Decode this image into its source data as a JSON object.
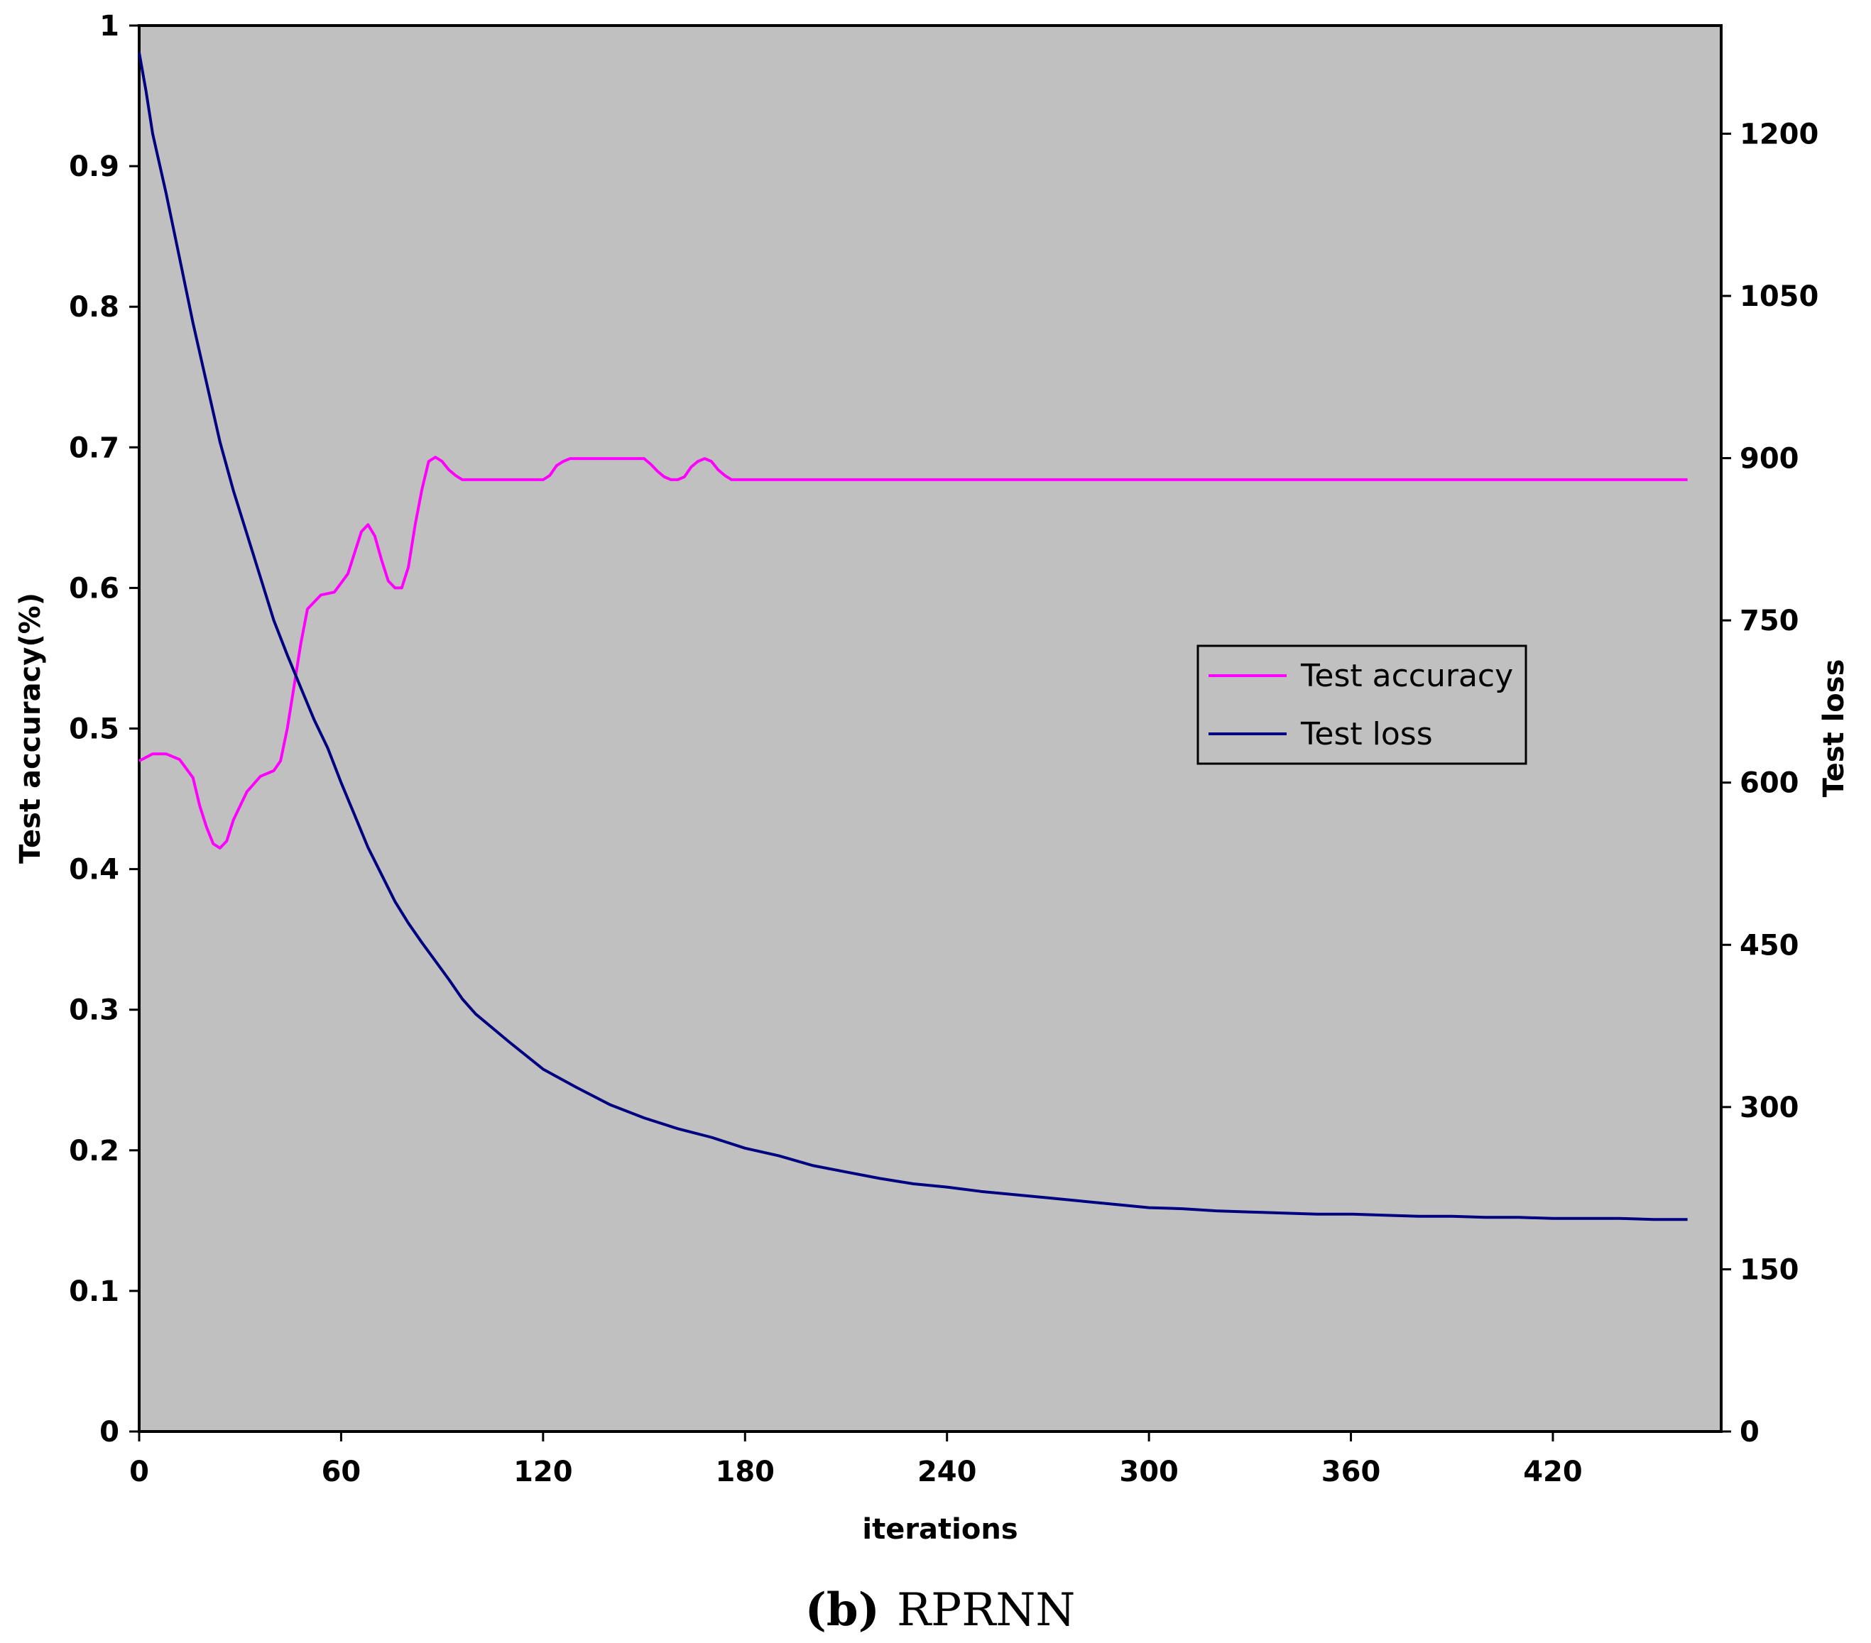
{
  "caption": {
    "letter": "(b)",
    "text": "RPRNN"
  },
  "chart_data": {
    "type": "line",
    "xlabel": "iterations",
    "ylabel_left": "Test accuracy(%)",
    "ylabel_right": "Test loss",
    "xlim": [
      0,
      470
    ],
    "ylim_left": [
      0,
      1
    ],
    "ylim_right": [
      0,
      1300
    ],
    "x_ticks": [
      "0",
      "60",
      "120",
      "180",
      "240",
      "300",
      "360",
      "420"
    ],
    "y_left_ticks": [
      "0",
      "0.1",
      "0.2",
      "0.3",
      "0.4",
      "0.5",
      "0.6",
      "0.7",
      "0.8",
      "0.9",
      "1"
    ],
    "y_right_ticks": [
      "0",
      "150",
      "300",
      "450",
      "600",
      "750",
      "900",
      "1050",
      "1200"
    ],
    "grid": false,
    "plot_background": "#c0c0c0",
    "legend_position": "center-right",
    "series": [
      {
        "name": "Test accuracy",
        "axis": "left",
        "color": "#ff00ff",
        "x": [
          0,
          4,
          8,
          12,
          16,
          18,
          20,
          22,
          24,
          26,
          28,
          32,
          36,
          40,
          42,
          44,
          46,
          48,
          50,
          54,
          58,
          62,
          64,
          66,
          68,
          70,
          72,
          74,
          76,
          78,
          80,
          82,
          84,
          86,
          88,
          90,
          92,
          94,
          96,
          98,
          100,
          105,
          110,
          115,
          120,
          122,
          124,
          126,
          128,
          130,
          135,
          140,
          145,
          150,
          152,
          154,
          156,
          158,
          160,
          162,
          164,
          166,
          168,
          170,
          172,
          174,
          176,
          178,
          180,
          460
        ],
        "y": [
          0.477,
          0.482,
          0.482,
          0.478,
          0.465,
          0.445,
          0.43,
          0.418,
          0.415,
          0.42,
          0.435,
          0.455,
          0.466,
          0.47,
          0.477,
          0.5,
          0.53,
          0.56,
          0.585,
          0.595,
          0.597,
          0.61,
          0.625,
          0.64,
          0.645,
          0.637,
          0.62,
          0.605,
          0.6,
          0.6,
          0.615,
          0.645,
          0.67,
          0.69,
          0.693,
          0.69,
          0.684,
          0.68,
          0.677,
          0.677,
          0.677,
          0.677,
          0.677,
          0.677,
          0.677,
          0.68,
          0.687,
          0.69,
          0.692,
          0.692,
          0.692,
          0.692,
          0.692,
          0.692,
          0.688,
          0.683,
          0.679,
          0.677,
          0.677,
          0.679,
          0.686,
          0.69,
          0.692,
          0.69,
          0.684,
          0.68,
          0.677,
          0.677,
          0.677,
          0.677
        ]
      },
      {
        "name": "Test loss",
        "axis": "right",
        "color": "#000080",
        "x": [
          0,
          2,
          4,
          8,
          12,
          16,
          20,
          24,
          28,
          32,
          36,
          40,
          44,
          48,
          52,
          56,
          60,
          64,
          68,
          72,
          76,
          80,
          84,
          88,
          92,
          96,
          100,
          110,
          120,
          130,
          140,
          150,
          160,
          170,
          180,
          190,
          200,
          210,
          220,
          230,
          240,
          250,
          260,
          270,
          280,
          290,
          300,
          310,
          320,
          330,
          340,
          350,
          360,
          370,
          380,
          390,
          400,
          410,
          420,
          430,
          440,
          450,
          460
        ],
        "y": [
          1275,
          1240,
          1200,
          1145,
          1085,
          1025,
          970,
          915,
          870,
          830,
          790,
          750,
          718,
          688,
          658,
          632,
          600,
          570,
          540,
          515,
          490,
          470,
          452,
          435,
          418,
          400,
          386,
          360,
          335,
          318,
          302,
          290,
          280,
          272,
          262,
          255,
          246,
          240,
          234,
          229,
          226,
          222,
          219,
          216,
          213,
          210,
          207,
          206,
          204,
          203,
          202,
          201,
          201,
          200,
          199,
          199,
          198,
          198,
          197,
          197,
          197,
          196,
          196
        ]
      }
    ]
  }
}
